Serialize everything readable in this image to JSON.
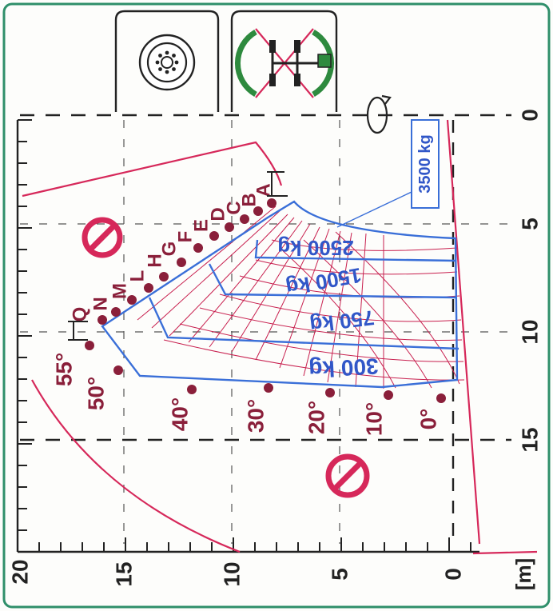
{
  "chart_data": {
    "type": "diagram",
    "x_ticks": [
      "0",
      "5",
      "10",
      "15",
      "20"
    ],
    "y_ticks": [
      "0",
      "5",
      "10",
      "15",
      "[m]"
    ],
    "boom_angles": [
      "55°",
      "50°",
      "40°",
      "30°",
      "20°",
      "10°",
      "0°"
    ],
    "extensions": [
      "A",
      "B",
      "C",
      "D",
      "E",
      "F",
      "G",
      "H",
      "L",
      "M",
      "N",
      "Q"
    ],
    "loads": [
      "3500 kg",
      "2500 kg",
      "1500 kg",
      "750 kg",
      "300 kg"
    ]
  },
  "icons": {
    "outrigger_up": "wheel-icon",
    "outrigger_down": "stabilizer-icon",
    "rotation": "rotation-arrow-icon",
    "forbidden": "forbidden-icon"
  },
  "colors": {
    "border": "#2f8f6a",
    "curve_red": "#d6285a",
    "load_blue": "#3a6fd8",
    "dot_maroon": "#8a1f3a",
    "stabilizer_green": "#2e8a3e"
  }
}
